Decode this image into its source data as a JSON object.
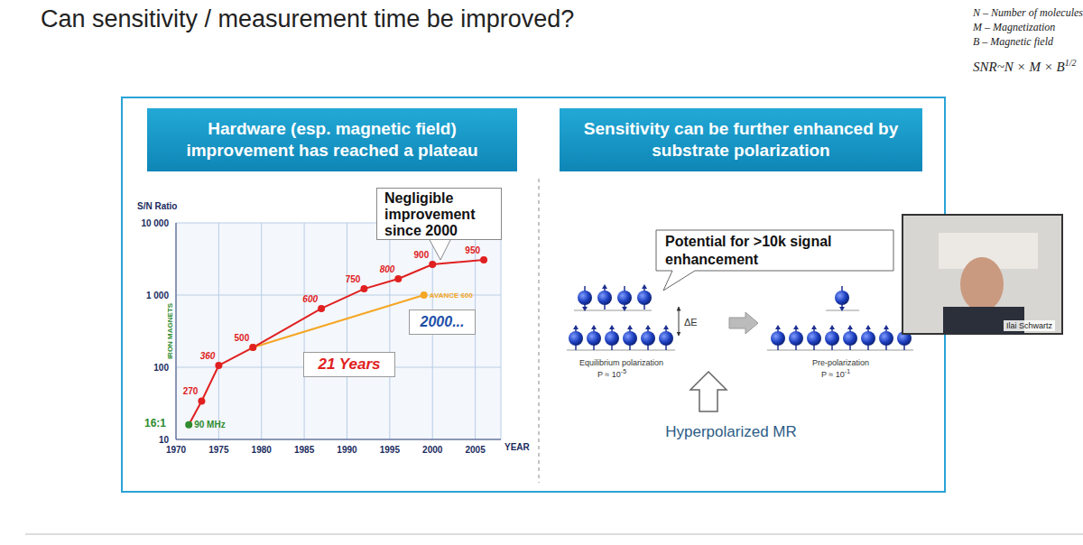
{
  "title": "Can sensitivity / measurement time be improved?",
  "legend_notes": [
    "N – Number of molecules",
    "M – Magnetization",
    "B – Magnetic field"
  ],
  "formula": {
    "text": "SNR~N × M × B",
    "exponent": "1/2"
  },
  "left_panel": {
    "header": "Hardware (esp. magnetic field) improvement has reached a plateau"
  },
  "chart_data": {
    "type": "line",
    "log": "y",
    "grid": true,
    "y_label": "S/N Ratio",
    "x_label": "YEAR",
    "xlim": [
      1970,
      2008
    ],
    "xticks": [
      1970,
      1975,
      1980,
      1985,
      1990,
      1995,
      2000,
      2005
    ],
    "ylim": [
      10,
      10000
    ],
    "yticks": [
      10,
      100,
      {
        "value": 1000,
        "label": "1 000"
      },
      {
        "value": 10000,
        "label": "10 000"
      }
    ],
    "series": [
      {
        "color": "#e02020",
        "marker": "circle",
        "x": [
          1971.5,
          1973,
          1975,
          1979,
          1987,
          1992,
          1996,
          2000,
          2006
        ],
        "values": [
          16,
          34,
          106,
          188,
          650,
          1220,
          1680,
          2660,
          3070
        ],
        "point_labels": [
          "90 MHz",
          "270",
          "360",
          "500",
          "600",
          "750",
          "800",
          "900",
          "950"
        ],
        "colors": [
          "#2e8b2e",
          "#e02020",
          "#e02020",
          "#e02020",
          "#e02020",
          "#e02020",
          "#e02020",
          "#e02020",
          "#e02020"
        ]
      },
      {
        "color": "#f5a623",
        "marker": "circle",
        "x": [
          1979,
          1999
        ],
        "values": [
          188,
          1000
        ],
        "point_labels": [
          null,
          "AVANCE 600"
        ]
      }
    ],
    "annotations": [
      "16:1",
      "IRON MAGNETS",
      "21 Years",
      "2000...",
      "Negligible improvement since 2000"
    ]
  },
  "right_panel": {
    "header": "Sensitivity can be further enhanced by substrate polarization",
    "callout": "Potential for >10k signal enhancement",
    "energy_label": "ΔE",
    "left_state": {
      "label": "Equilibrium polarization",
      "base": "P ≈ 10",
      "exponent": "-5"
    },
    "right_state": {
      "label": "Pre-polarization",
      "base": "P ≈ 10",
      "exponent": "-1"
    },
    "footer": "Hyperpolarized MR"
  },
  "video": {
    "name": "Ilai Schwartz"
  }
}
